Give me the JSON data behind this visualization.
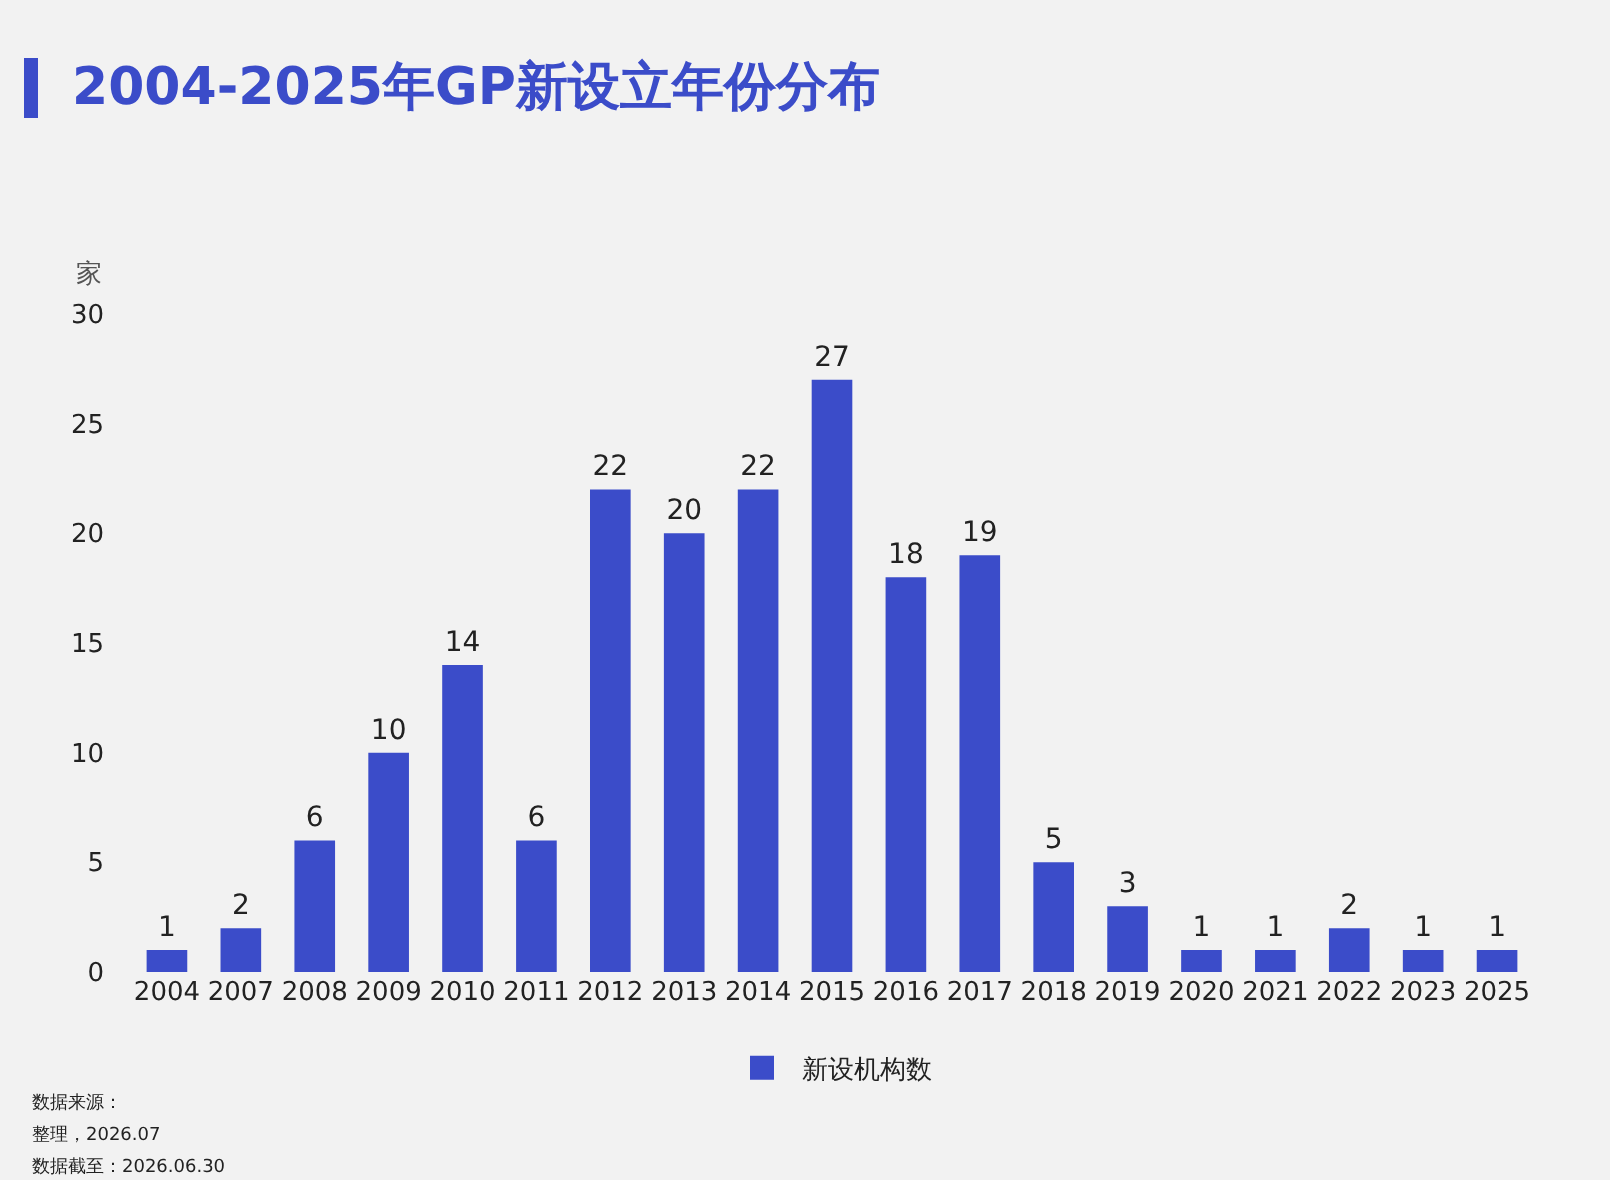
{
  "chart_data": {
    "type": "bar",
    "title": "2004-2025年GP新设立年份分布",
    "ylabel": "家",
    "categories": [
      "2004",
      "2007",
      "2008",
      "2009",
      "2010",
      "2011",
      "2012",
      "2013",
      "2014",
      "2015",
      "2016",
      "2017",
      "2018",
      "2019",
      "2020",
      "2021",
      "2022",
      "2023",
      "2025"
    ],
    "series": [
      {
        "name": "新设机构数",
        "color": "#3b4cc9",
        "values": [
          1,
          2,
          6,
          10,
          14,
          6,
          22,
          20,
          22,
          27,
          18,
          19,
          5,
          3,
          1,
          1,
          2,
          1,
          1
        ]
      }
    ],
    "ylim": [
      0,
      30
    ],
    "yticks": [
      0,
      5,
      10,
      15,
      20,
      25,
      30
    ],
    "grid": false,
    "legend": "bottom",
    "data_labels": true,
    "annotations": [
      "数据来源：",
      "整理，2026.07",
      "数据截至：2026.06.30"
    ]
  }
}
